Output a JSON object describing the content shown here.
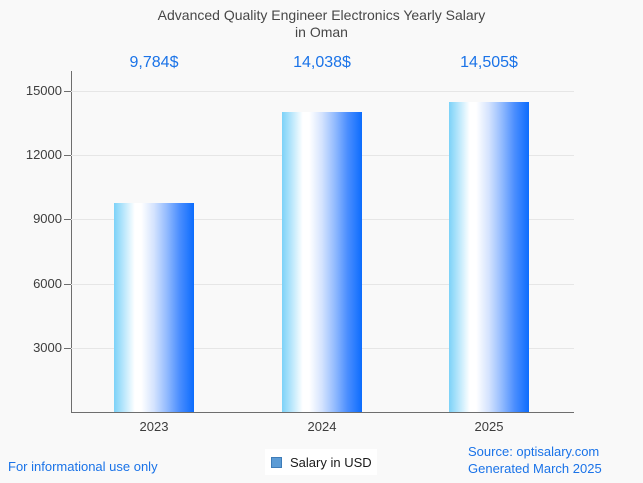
{
  "chart_data": {
    "type": "bar",
    "title_lines": [
      "Advanced Quality Engineer Electronics Yearly Salary",
      "in Oman"
    ],
    "title": "Advanced Quality Engineer Electronics Yearly Salary in Oman",
    "categories": [
      "2023",
      "2024",
      "2025"
    ],
    "series": [
      {
        "name": "Salary in USD",
        "values": [
          9784,
          14038,
          14505
        ]
      }
    ],
    "value_labels": [
      "9,784$",
      "14,038$",
      "14,505$"
    ],
    "xlabel": "",
    "ylabel": "",
    "ylim": [
      0,
      15000
    ],
    "yticks": [
      3000,
      6000,
      9000,
      12000,
      15000
    ],
    "grid": true,
    "legend_position": "bottom",
    "bar_gradient_stops": [
      [
        "#7cd2f8",
        "0%"
      ],
      [
        "#aee3fb",
        "10%"
      ],
      [
        "#ffffff",
        "26%"
      ],
      [
        "#ffffff",
        "34%"
      ],
      [
        "#d4e3fe",
        "50%"
      ],
      [
        "#93bbfe",
        "66%"
      ],
      [
        "#4b8efe",
        "82%"
      ],
      [
        "#0c6cfd",
        "100%"
      ]
    ]
  },
  "footer": {
    "disclaimer": "For informational use only",
    "legend_label": "Salary in USD",
    "source_line1": "Source: optisalary.com",
    "source_line2": "Generated March 2025"
  },
  "colors": {
    "background": "#f9f9f9",
    "accent_blue": "#1a73e8",
    "title_gray": "#474747",
    "tick_label_gray": "#3d3d3d",
    "axis_gray": "#6e6e6e",
    "gridline_gray": "#e6e6e6",
    "legend_swatch_fill": "#5b9bd5",
    "legend_swatch_border": "#3e7cb8",
    "legend_text": "#1a1a1a"
  }
}
